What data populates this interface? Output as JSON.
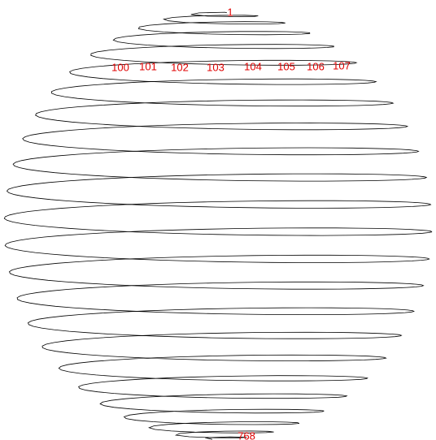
{
  "labels": [
    "1",
    "100",
    "101",
    "102",
    "103",
    "104",
    "105",
    "106",
    "107",
    "768"
  ]
}
